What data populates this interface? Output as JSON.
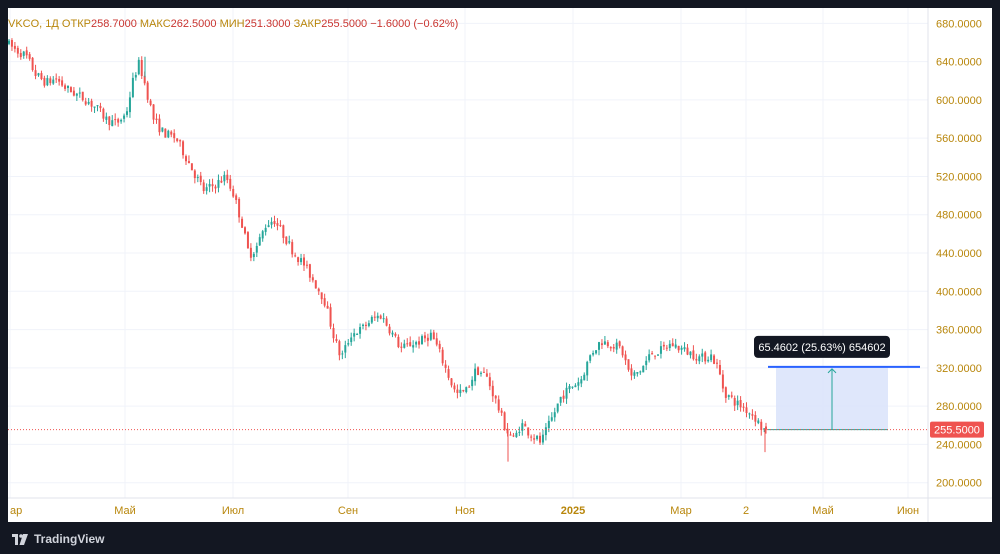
{
  "legend": {
    "symbol": "VKCO, 1Д",
    "open_label": "ОТКР",
    "open": "258.7000",
    "high_label": "МАКС",
    "high": "262.5000",
    "low_label": "МИН",
    "low": "251.3000",
    "close_label": "ЗАКР",
    "close": "255.5000",
    "change": "−1.6000 (−0.62%)"
  },
  "branding": {
    "name": "TradingView"
  },
  "colors": {
    "up": "#26a69a",
    "down": "#ef5350",
    "price_line": "#ef5350",
    "measure_fill": "#dbe4fb",
    "measure_line": "#2962ff",
    "measure_arrow": "#26a69a"
  },
  "chart_data": {
    "type": "candlestick",
    "symbol": "VKCO",
    "interval": "1Д",
    "x_ticks": [
      "ар",
      "Май",
      "Июл",
      "Сен",
      "Ноя",
      "2025",
      "Мар",
      "2",
      "Май",
      "Июн"
    ],
    "y_ticks": [
      "680.0000",
      "640.0000",
      "600.0000",
      "560.0000",
      "520.0000",
      "480.0000",
      "440.0000",
      "400.0000",
      "360.0000",
      "320.0000",
      "280.0000",
      "240.0000",
      "200.0000"
    ],
    "ylim": [
      184,
      696
    ],
    "y_axis_position": "right",
    "grid": true,
    "current_price": "255.5000",
    "price_path": [
      [
        0,
        660
      ],
      [
        10,
        652
      ],
      [
        20,
        646
      ],
      [
        30,
        626
      ],
      [
        40,
        618
      ],
      [
        50,
        622
      ],
      [
        60,
        612
      ],
      [
        70,
        606
      ],
      [
        80,
        600
      ],
      [
        90,
        592
      ],
      [
        100,
        580
      ],
      [
        110,
        575
      ],
      [
        120,
        585
      ],
      [
        128,
        625
      ],
      [
        133,
        638
      ],
      [
        138,
        620
      ],
      [
        148,
        578
      ],
      [
        158,
        565
      ],
      [
        170,
        560
      ],
      [
        180,
        540
      ],
      [
        190,
        520
      ],
      [
        198,
        505
      ],
      [
        210,
        512
      ],
      [
        220,
        520
      ],
      [
        228,
        500
      ],
      [
        236,
        470
      ],
      [
        243,
        438
      ],
      [
        250,
        445
      ],
      [
        260,
        470
      ],
      [
        268,
        475
      ],
      [
        278,
        458
      ],
      [
        288,
        440
      ],
      [
        298,
        428
      ],
      [
        308,
        410
      ],
      [
        318,
        392
      ],
      [
        328,
        352
      ],
      [
        335,
        330
      ],
      [
        345,
        355
      ],
      [
        355,
        360
      ],
      [
        365,
        370
      ],
      [
        375,
        375
      ],
      [
        385,
        358
      ],
      [
        395,
        340
      ],
      [
        405,
        345
      ],
      [
        415,
        348
      ],
      [
        425,
        355
      ],
      [
        432,
        340
      ],
      [
        440,
        318
      ],
      [
        450,
        292
      ],
      [
        460,
        296
      ],
      [
        470,
        318
      ],
      [
        480,
        312
      ],
      [
        490,
        285
      ],
      [
        500,
        255
      ],
      [
        508,
        245
      ],
      [
        515,
        262
      ],
      [
        525,
        250
      ],
      [
        535,
        242
      ],
      [
        545,
        265
      ],
      [
        555,
        290
      ],
      [
        565,
        300
      ],
      [
        575,
        308
      ],
      [
        585,
        335
      ],
      [
        595,
        348
      ],
      [
        605,
        345
      ],
      [
        615,
        340
      ],
      [
        625,
        310
      ],
      [
        635,
        318
      ],
      [
        645,
        335
      ],
      [
        655,
        338
      ],
      [
        665,
        345
      ],
      [
        675,
        340
      ],
      [
        685,
        335
      ],
      [
        695,
        330
      ],
      [
        705,
        333
      ],
      [
        712,
        320
      ],
      [
        718,
        295
      ],
      [
        728,
        285
      ],
      [
        738,
        278
      ],
      [
        748,
        270
      ],
      [
        755,
        258
      ],
      [
        758,
        255.5
      ]
    ],
    "current_candle": {
      "open": 258.7,
      "high": 262.5,
      "low": 251.3,
      "close": 255.5
    },
    "measure": {
      "label": "65.4602 (25.63%) 654602",
      "from_price": 255.5,
      "to_price": 321.0,
      "x_start": 768,
      "x_end": 880
    }
  }
}
